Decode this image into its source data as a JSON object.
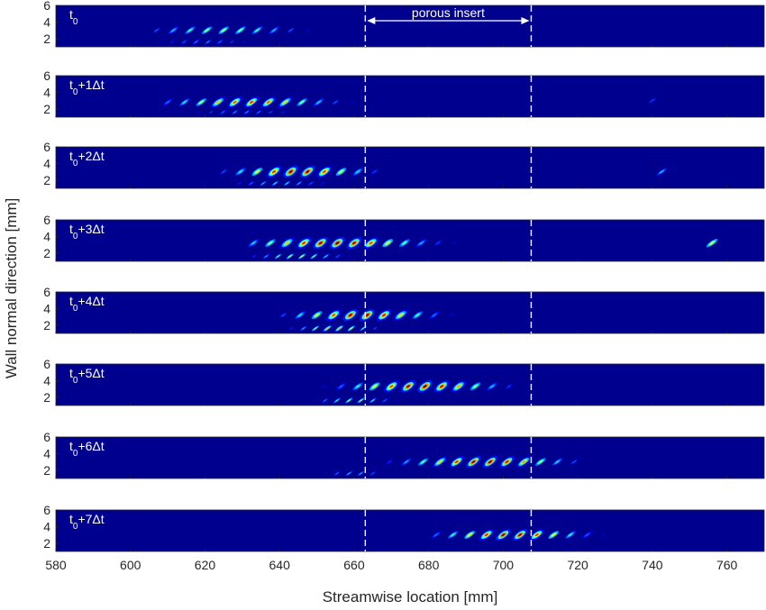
{
  "chart_data": {
    "type": "heatmap",
    "xlabel": "Streamwise location [mm]",
    "ylabel": "Wall normal direction [mm]",
    "xlim": [
      580,
      770
    ],
    "ylim": [
      1,
      6
    ],
    "x_ticks": [
      "580",
      "600",
      "620",
      "640",
      "660",
      "680",
      "700",
      "720",
      "740",
      "760"
    ],
    "y_ticks": [
      "2",
      "4",
      "6"
    ],
    "colormap": "jet",
    "background_color": "#00008f",
    "porous_insert": {
      "label": "porous insert",
      "x_start": 663,
      "x_end": 707.5
    },
    "panels": [
      {
        "label": "t",
        "sub": "0",
        "suffix": "",
        "packets": [
          {
            "x0": 607,
            "x1": 662,
            "y": 3.0,
            "amp": 0.55,
            "peak": 625,
            "spacing": 4.5,
            "wy": 0.35
          },
          {
            "x0": 608,
            "x1": 642,
            "y": 1.6,
            "amp": 0.3,
            "peak": 620,
            "spacing": 3.2,
            "wy": 0.2
          }
        ]
      },
      {
        "label": "t",
        "sub": "0",
        "suffix": "+1Δt",
        "packets": [
          {
            "x0": 610,
            "x1": 668,
            "y": 2.8,
            "amp": 0.85,
            "peak": 632,
            "spacing": 4.5,
            "wy": 0.35
          },
          {
            "x0": 612,
            "x1": 650,
            "y": 1.6,
            "amp": 0.3,
            "peak": 630,
            "spacing": 3.2,
            "wy": 0.2
          },
          {
            "x0": 735,
            "x1": 745,
            "y": 3.0,
            "amp": 0.2,
            "peak": 740,
            "spacing": 5,
            "wy": 0.3
          }
        ]
      },
      {
        "label": "t",
        "sub": "0",
        "suffix": "+2Δt",
        "packets": [
          {
            "x0": 625,
            "x1": 672,
            "y": 3.0,
            "amp": 1.0,
            "peak": 645,
            "spacing": 4.5,
            "wy": 0.4
          },
          {
            "x0": 626,
            "x1": 660,
            "y": 1.6,
            "amp": 0.4,
            "peak": 640,
            "spacing": 3.2,
            "wy": 0.2
          },
          {
            "x0": 738,
            "x1": 746,
            "y": 3.0,
            "amp": 0.35,
            "peak": 742,
            "spacing": 4.5,
            "wy": 0.3
          }
        ]
      },
      {
        "label": "t",
        "sub": "0",
        "suffix": "+3Δt",
        "packets": [
          {
            "x0": 633,
            "x1": 696,
            "y": 3.2,
            "amp": 1.0,
            "peak": 655,
            "spacing": 4.5,
            "wy": 0.4
          },
          {
            "x0": 630,
            "x1": 662,
            "y": 1.6,
            "amp": 0.6,
            "peak": 645,
            "spacing": 3.2,
            "wy": 0.2
          },
          {
            "x0": 751,
            "x1": 762,
            "y": 3.2,
            "amp": 0.6,
            "peak": 756,
            "spacing": 5,
            "wy": 0.35
          }
        ]
      },
      {
        "label": "t",
        "sub": "0",
        "suffix": "+4Δt",
        "packets": [
          {
            "x0": 641,
            "x1": 690,
            "y": 3.2,
            "amp": 1.0,
            "peak": 662,
            "spacing": 4.5,
            "wy": 0.4
          },
          {
            "x0": 640,
            "x1": 668,
            "y": 1.6,
            "amp": 0.75,
            "peak": 655,
            "spacing": 3.2,
            "wy": 0.2
          },
          {
            "x0": 766,
            "x1": 770,
            "y": 2.5,
            "amp": 0.3,
            "peak": 768,
            "spacing": 4,
            "wy": 0.3
          }
        ]
      },
      {
        "label": "t",
        "sub": "0",
        "suffix": "+5Δt",
        "packets": [
          {
            "x0": 652,
            "x1": 705,
            "y": 3.3,
            "amp": 1.0,
            "peak": 678,
            "spacing": 4.5,
            "wy": 0.4
          },
          {
            "x0": 649,
            "x1": 676,
            "y": 1.6,
            "amp": 0.55,
            "peak": 660,
            "spacing": 3.2,
            "wy": 0.2
          }
        ]
      },
      {
        "label": "t",
        "sub": "0",
        "suffix": "+6Δt",
        "packets": [
          {
            "x0": 665,
            "x1": 722,
            "y": 3.0,
            "amp": 1.0,
            "peak": 695,
            "spacing": 4.5,
            "wy": 0.35
          },
          {
            "x0": 649,
            "x1": 672,
            "y": 1.6,
            "amp": 0.35,
            "peak": 660,
            "spacing": 3.2,
            "wy": 0.2
          }
        ]
      },
      {
        "label": "t",
        "sub": "0",
        "suffix": "+7Δt",
        "packets": [
          {
            "x0": 682,
            "x1": 732,
            "y": 3.0,
            "amp": 1.0,
            "peak": 702,
            "spacing": 4.5,
            "wy": 0.35
          }
        ]
      }
    ]
  }
}
